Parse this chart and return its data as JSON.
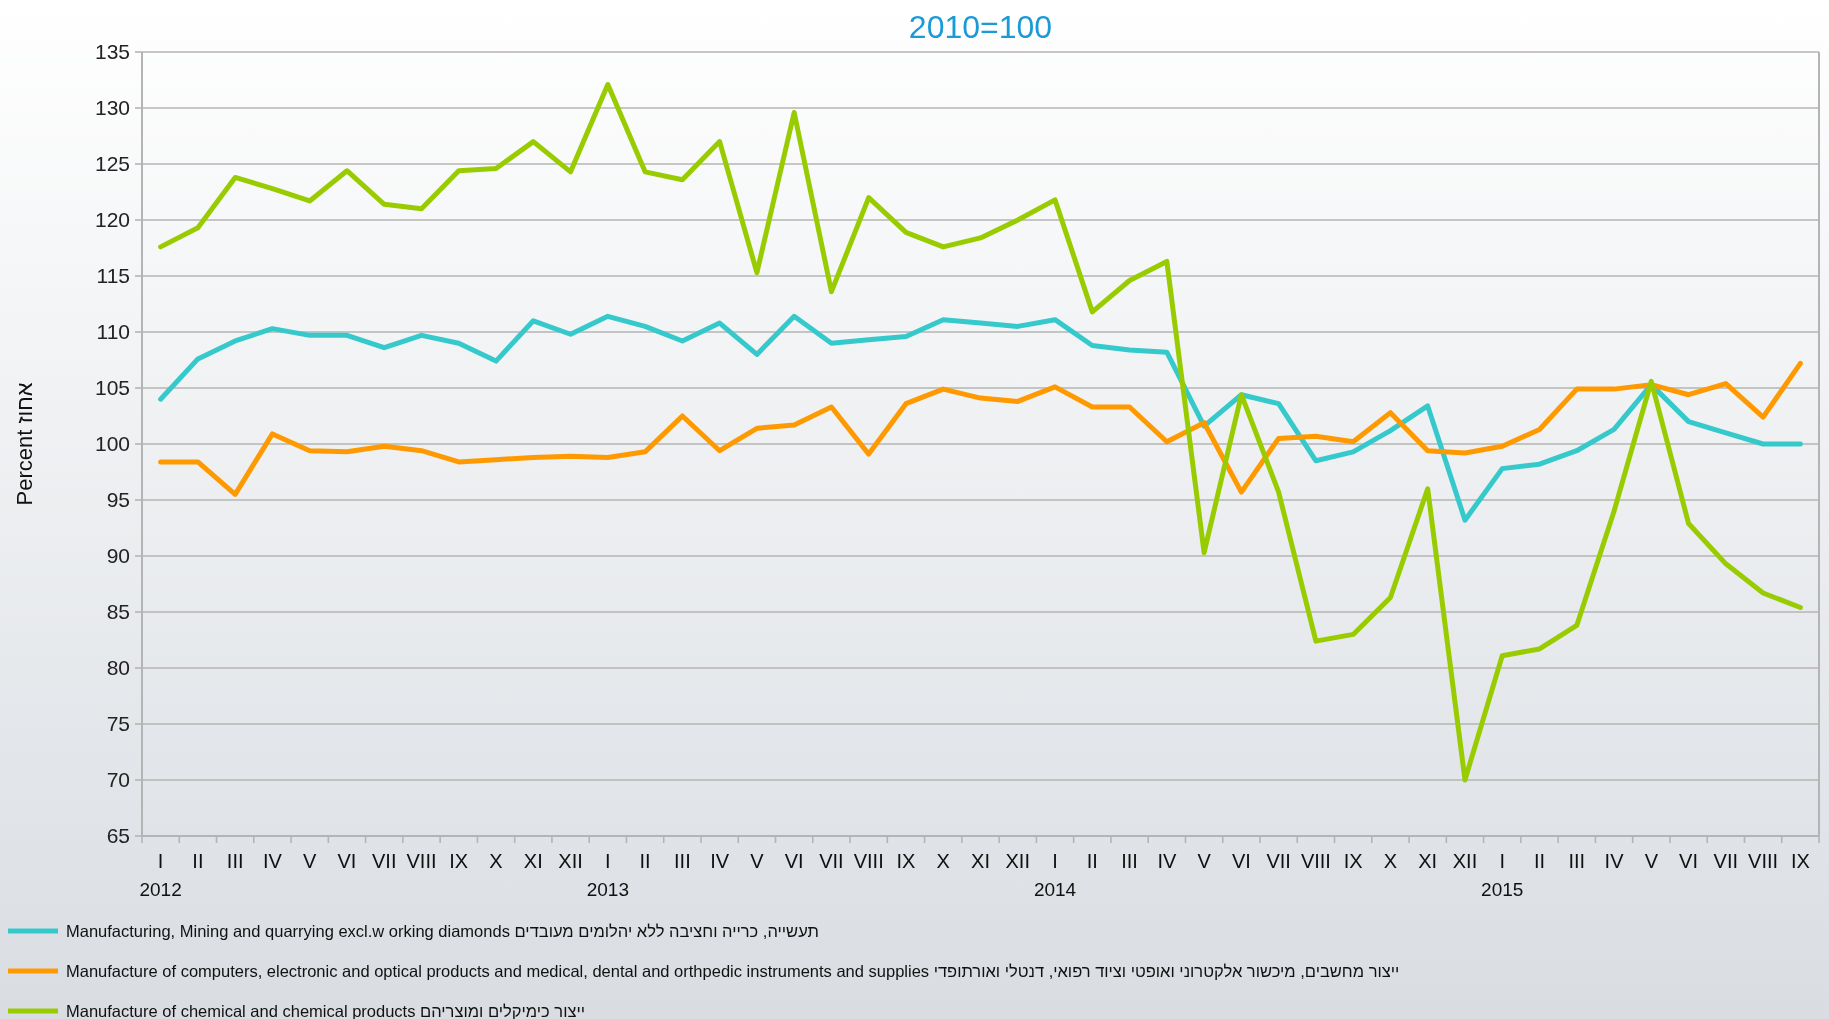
{
  "chart_data": {
    "type": "line",
    "title": "2010=100",
    "ylabel": "Percent אחוז",
    "categories": [
      "I",
      "II",
      "III",
      "IV",
      "V",
      "VI",
      "VII",
      "VIII",
      "IX",
      "X",
      "XI",
      "XII",
      "I",
      "II",
      "III",
      "IV",
      "V",
      "VI",
      "VII",
      "VIII",
      "IX",
      "X",
      "XI",
      "XII",
      "I",
      "II",
      "III",
      "IV",
      "V",
      "VI",
      "VII",
      "VIII",
      "IX",
      "X",
      "XI",
      "XII",
      "I",
      "II",
      "III",
      "IV",
      "V",
      "VI",
      "VII",
      "VIII",
      "IX"
    ],
    "ylim": [
      65,
      135
    ],
    "yticks": [
      65,
      70,
      75,
      80,
      85,
      90,
      95,
      100,
      105,
      110,
      115,
      120,
      125,
      130,
      135
    ],
    "grid": "y",
    "legend": "bottom",
    "annotations": [
      "2012",
      "2013",
      "2014",
      "2015"
    ],
    "series": [
      {
        "name": "Manufacturing, Mining and quarrying excl.w orking diamonds תעשייה, כרייה וחציבה ללא יהלומים מעובדים",
        "color": "#36c9cc",
        "values": [
          104.0,
          107.6,
          109.2,
          110.3,
          109.7,
          109.7,
          108.6,
          109.7,
          109.0,
          107.4,
          111.0,
          109.8,
          111.4,
          110.5,
          109.2,
          110.8,
          108.0,
          111.4,
          109.0,
          109.3,
          109.6,
          111.1,
          110.8,
          110.5,
          111.1,
          108.8,
          108.4,
          108.2,
          101.6,
          104.4,
          103.6,
          98.5,
          99.3,
          101.2,
          103.4,
          93.2,
          97.8,
          98.2,
          99.4,
          101.3,
          105.3,
          102.0,
          101.0,
          100.0,
          100.0
        ]
      },
      {
        "name": "Manufacture  of computers, electronic and optical products and medical, dental and orthpedic instruments and supplies ייצור מחשבים, מיכשור אלקטרוני ואופטי וציוד רפואי, דנטלי ואורתופדי",
        "color": "#ff9900",
        "values": [
          98.4,
          98.4,
          95.5,
          100.9,
          99.4,
          99.3,
          99.8,
          99.4,
          98.4,
          98.6,
          98.8,
          98.9,
          98.8,
          99.3,
          102.5,
          99.4,
          101.4,
          101.7,
          103.3,
          99.1,
          103.6,
          104.9,
          104.1,
          103.8,
          105.1,
          103.3,
          103.3,
          100.2,
          101.9,
          95.7,
          100.5,
          100.7,
          100.2,
          102.8,
          99.4,
          99.2,
          99.8,
          101.3,
          104.9,
          104.9,
          105.3,
          104.4,
          105.4,
          102.4,
          107.2
        ]
      },
      {
        "name": "Manufacture of chemical and chemical products  ייצור כימיקלים ומוצריהם",
        "color": "#99cc00",
        "values": [
          117.6,
          119.3,
          123.8,
          122.8,
          121.7,
          124.4,
          121.4,
          121.0,
          124.4,
          124.6,
          127.0,
          124.3,
          132.1,
          124.3,
          123.6,
          127.0,
          115.3,
          129.6,
          113.6,
          122.0,
          118.9,
          117.6,
          118.4,
          120.0,
          121.8,
          111.8,
          114.6,
          116.3,
          90.3,
          104.4,
          95.7,
          82.4,
          83.0,
          86.3,
          96.0,
          70.0,
          81.1,
          81.7,
          83.8,
          94.0,
          105.6,
          92.9,
          89.3,
          86.7,
          85.4
        ]
      }
    ]
  }
}
